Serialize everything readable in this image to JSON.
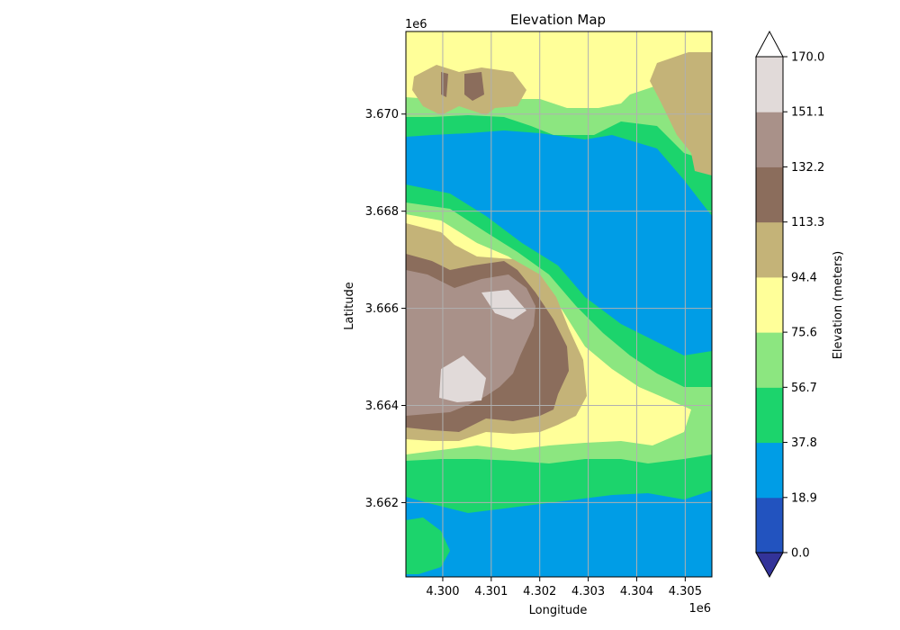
{
  "chart_data": {
    "type": "contour",
    "title": "Elevation Map",
    "xlabel": "Longitude",
    "ylabel": "Latitude",
    "x_offset_label": "1e6",
    "y_offset_label": "1e6",
    "x_ticks": [
      4.3,
      4.301,
      4.302,
      4.303,
      4.304,
      4.305
    ],
    "x_tick_labels": [
      "4.300",
      "4.301",
      "4.302",
      "4.303",
      "4.304",
      "4.305"
    ],
    "y_ticks": [
      3.662,
      3.664,
      3.666,
      3.668,
      3.67
    ],
    "y_tick_labels": [
      "3.662",
      "3.664",
      "3.666",
      "3.668",
      "3.670"
    ],
    "xlim": [
      4.29924,
      4.30555
    ],
    "ylim": [
      3.66047,
      3.6717
    ],
    "grid": true,
    "colorbar": {
      "label": "Elevation (meters)",
      "levels": [
        0.0,
        18.9,
        37.8,
        56.7,
        75.6,
        94.4,
        113.3,
        132.2,
        151.1,
        170.0
      ],
      "level_labels": [
        "0.0",
        "18.9",
        "37.8",
        "56.7",
        "75.6",
        "94.4",
        "113.3",
        "132.2",
        "151.1",
        "170.0"
      ],
      "colors": [
        "#2253BF",
        "#009DE6",
        "#1CD46C",
        "#8CE680",
        "#FFFF99",
        "#C4B378",
        "#8B6D5C",
        "#A99189",
        "#E1DAD9"
      ],
      "under_color": "#333399",
      "over_color": "#ffffff",
      "extend": "both"
    }
  }
}
